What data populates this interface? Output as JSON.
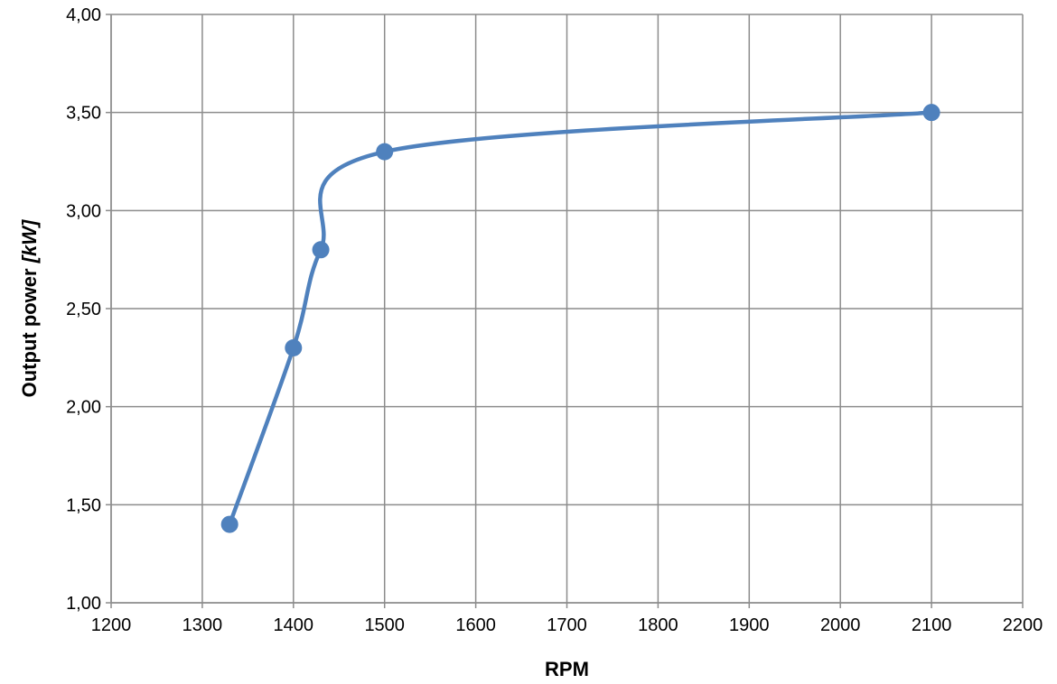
{
  "chart_data": {
    "type": "scatter",
    "title": "",
    "xlabel": "RPM",
    "ylabel_main": "Output power ",
    "ylabel_unit": "[kW]",
    "xlim": [
      1200,
      2200
    ],
    "ylim": [
      1.0,
      4.0
    ],
    "x_ticks": [
      1200,
      1300,
      1400,
      1500,
      1600,
      1700,
      1800,
      1900,
      2000,
      2100,
      2200
    ],
    "y_ticks": [
      1.0,
      1.5,
      2.0,
      2.5,
      3.0,
      3.5,
      4.0
    ],
    "x_tick_labels": [
      "1200",
      "1300",
      "1400",
      "1500",
      "1600",
      "1700",
      "1800",
      "1900",
      "2000",
      "2100",
      "2200"
    ],
    "y_tick_labels": [
      "1,00",
      "1,50",
      "2,00",
      "2,50",
      "3,00",
      "3,50",
      "4,00"
    ],
    "grid": true,
    "legend": "none",
    "smooth_line": true,
    "series": [
      {
        "color": "#4f81bd",
        "x": [
          1330,
          1400,
          1430,
          1500,
          2100
        ],
        "y": [
          1.4,
          2.3,
          2.8,
          3.3,
          3.5
        ]
      }
    ]
  }
}
